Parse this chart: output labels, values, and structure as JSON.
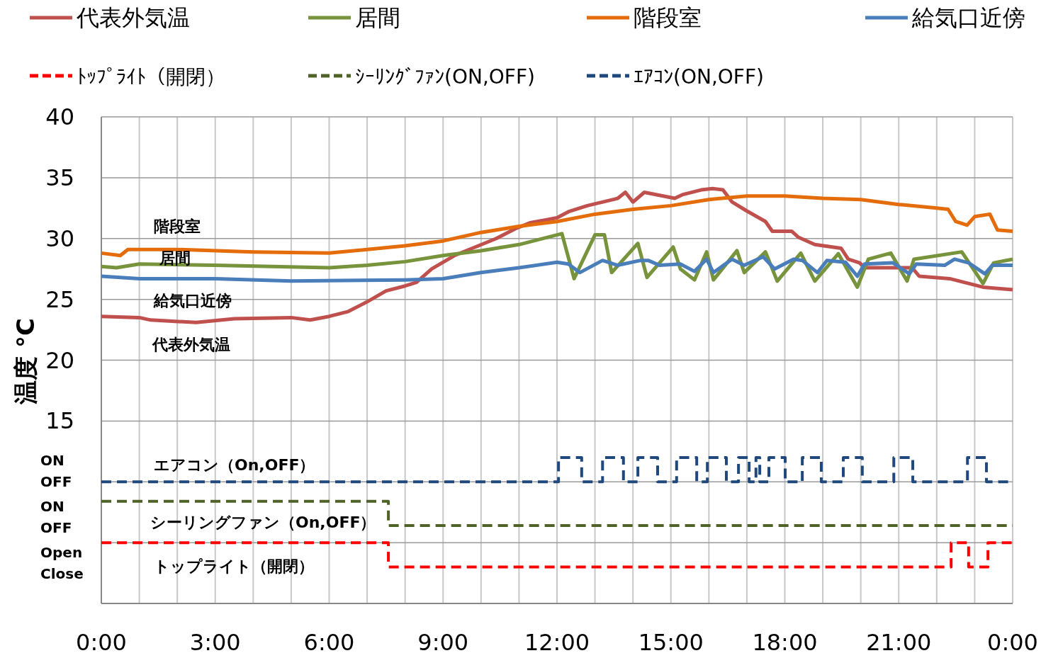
{
  "chart_data": {
    "type": "line",
    "ylabel": "温度 °C",
    "xlim": [
      0,
      24
    ],
    "ylim": [
      0,
      40
    ],
    "xticks": [
      {
        "value": 0,
        "label": "0:00"
      },
      {
        "value": 1,
        "label": null
      },
      {
        "value": 2,
        "label": null
      },
      {
        "value": 3,
        "label": "3:00"
      },
      {
        "value": 4,
        "label": null
      },
      {
        "value": 5,
        "label": null
      },
      {
        "value": 6,
        "label": "6:00"
      },
      {
        "value": 7,
        "label": null
      },
      {
        "value": 8,
        "label": null
      },
      {
        "value": 9,
        "label": "9:00"
      },
      {
        "value": 10,
        "label": null
      },
      {
        "value": 11,
        "label": null
      },
      {
        "value": 12,
        "label": "12:00"
      },
      {
        "value": 13,
        "label": null
      },
      {
        "value": 14,
        "label": null
      },
      {
        "value": 15,
        "label": "15:00"
      },
      {
        "value": 16,
        "label": null
      },
      {
        "value": 17,
        "label": null
      },
      {
        "value": 18,
        "label": "18:00"
      },
      {
        "value": 19,
        "label": null
      },
      {
        "value": 20,
        "label": null
      },
      {
        "value": 21,
        "label": "21:00"
      },
      {
        "value": 22,
        "label": null
      },
      {
        "value": 23,
        "label": null
      },
      {
        "value": 24,
        "label": "0:00"
      }
    ],
    "yticks": [
      {
        "value": 5,
        "label": null
      },
      {
        "value": 10,
        "label": null
      },
      15,
      20,
      25,
      30,
      35,
      40
    ],
    "grid": true,
    "legend": "top",
    "line_style": "solid",
    "marker": "none",
    "series": [
      {
        "name": "代表外気温",
        "color": "#c0504d",
        "x": [
          0,
          1,
          1.3,
          2.5,
          3.5,
          5,
          5.5,
          6,
          6.5,
          7,
          7.5,
          8,
          8.3,
          8.7,
          9.3,
          10.4,
          10.9,
          11.3,
          12,
          12.3,
          12.8,
          13.6,
          13.8,
          14,
          14.3,
          15.1,
          15.3,
          15.8,
          16.1,
          16.37,
          16.61,
          16.98,
          17.49,
          17.67,
          18.18,
          18.36,
          18.79,
          19.48,
          19.67,
          19.97,
          20.1,
          21.35,
          21.54,
          22.34,
          23.22,
          24
        ],
        "values": [
          23.6,
          23.5,
          23.3,
          23.1,
          23.4,
          23.5,
          23.3,
          23.6,
          24.0,
          24.8,
          25.7,
          26.1,
          26.4,
          27.5,
          28.6,
          30.0,
          30.8,
          31.3,
          31.7,
          32.2,
          32.7,
          33.3,
          33.8,
          33.0,
          33.8,
          33.3,
          33.6,
          34.0,
          34.1,
          34.0,
          33.0,
          32.3,
          31.4,
          30.6,
          30.6,
          30.1,
          29.5,
          29.2,
          28.3,
          28.0,
          27.6,
          27.6,
          26.9,
          26.7,
          26.0,
          25.8
        ]
      },
      {
        "name": "居間",
        "color": "#77933c",
        "x": [
          0,
          0.4,
          1,
          3,
          6,
          7,
          8,
          9,
          10,
          11,
          12.13,
          12.45,
          13.0,
          13.25,
          13.44,
          14.13,
          14.37,
          15.06,
          15.25,
          15.62,
          15.94,
          16.12,
          16.74,
          16.93,
          17.49,
          17.8,
          18.42,
          18.79,
          19.41,
          19.91,
          20.2,
          20.79,
          21.22,
          21.4,
          22.66,
          23.22,
          23.5,
          24
        ],
        "values": [
          27.7,
          27.6,
          27.9,
          27.8,
          27.6,
          27.8,
          28.1,
          28.6,
          29.0,
          29.5,
          30.4,
          26.7,
          30.3,
          30.3,
          27.2,
          29.6,
          26.8,
          29.3,
          27.5,
          26.6,
          28.9,
          26.6,
          29.0,
          27.2,
          28.9,
          26.5,
          28.8,
          26.5,
          28.75,
          26.0,
          28.3,
          28.8,
          26.5,
          28.3,
          28.9,
          26.3,
          28.0,
          28.3
        ]
      },
      {
        "name": "階段室",
        "color": "#e46c0a",
        "x": [
          0,
          0.5,
          0.7,
          2,
          4,
          6,
          7,
          8,
          9,
          10,
          11,
          12,
          13,
          14,
          15,
          16,
          17,
          18,
          19,
          20,
          21,
          22,
          22.3,
          22.5,
          22.8,
          23,
          23.4,
          23.6,
          24
        ],
        "values": [
          28.8,
          28.6,
          29.1,
          29.1,
          28.9,
          28.8,
          29.1,
          29.4,
          29.8,
          30.5,
          31.0,
          31.4,
          32.0,
          32.4,
          32.7,
          33.2,
          33.5,
          33.5,
          33.3,
          33.2,
          32.8,
          32.5,
          32.4,
          31.4,
          31.1,
          31.8,
          32.0,
          30.7,
          30.6
        ]
      },
      {
        "name": "給気口近傍",
        "color": "#4a7ebb",
        "x": [
          0,
          1,
          3,
          5,
          8,
          9,
          10,
          11,
          12,
          12.3,
          12.6,
          13.2,
          13.6,
          14.2,
          14.4,
          14.7,
          15.25,
          15.62,
          15.94,
          16.12,
          16.61,
          16.93,
          17.43,
          17.73,
          18.23,
          18.46,
          18.86,
          19.11,
          19.6,
          19.91,
          20.1,
          20.85,
          21.28,
          21.46,
          22.21,
          22.47,
          22.84,
          23.27,
          23.46,
          24
        ],
        "values": [
          26.9,
          26.7,
          26.7,
          26.5,
          26.6,
          26.7,
          27.2,
          27.6,
          28.05,
          27.9,
          27.2,
          28.2,
          27.8,
          28.2,
          28.2,
          27.8,
          27.9,
          27.3,
          28.3,
          27.2,
          28.3,
          27.8,
          28.5,
          27.5,
          28.3,
          28.2,
          27.2,
          28.2,
          28.05,
          26.9,
          27.9,
          28.0,
          27.1,
          27.9,
          27.8,
          28.3,
          28.0,
          27.1,
          27.8,
          27.8
        ]
      },
      {
        "name": "ﾄｯﾌﾟﾗｲﾄ（開閉）",
        "type": "step",
        "line_style": "dashed",
        "color": "#ff0000",
        "x": [
          0,
          7.56,
          22.38,
          22.84,
          23.35,
          24
        ],
        "values": [
          5,
          3,
          5,
          3,
          5,
          5
        ]
      },
      {
        "name": "ｼｰﾘﾝｸﾞﾌｧﾝ(ON,OFF)",
        "type": "step",
        "line_style": "dashed",
        "color": "#4f6228",
        "x": [
          0,
          7.56,
          24
        ],
        "values": [
          8.4,
          6.4,
          6.4
        ]
      },
      {
        "name": "ｴｱｺﾝ(ON,OFF)",
        "type": "step",
        "line_style": "dashed",
        "color": "#1f497d",
        "x": [
          0,
          12.04,
          12.65,
          13.2,
          13.75,
          14.13,
          14.65,
          15.15,
          15.68,
          15.96,
          16.46,
          16.78,
          17.06,
          17.24,
          17.34,
          17.58,
          18.01,
          18.46,
          18.96,
          19.54,
          20.04,
          20.87,
          21.37,
          22.81,
          23.31,
          24
        ],
        "values": [
          10,
          12,
          10,
          12,
          10,
          12,
          10,
          12,
          10,
          12,
          10,
          12,
          10,
          12,
          10,
          12,
          10,
          12,
          10,
          12,
          10,
          12,
          10,
          12,
          10,
          10
        ]
      }
    ],
    "annotations": [
      "階段室",
      "居間",
      "給気口近傍",
      "代表外気温",
      "エアコン（On,OFF）",
      "シーリングファン（On,OFF）",
      "トップライト（開閉）",
      "ON",
      "OFF",
      "ON",
      "OFF",
      "Open",
      "Close"
    ]
  }
}
